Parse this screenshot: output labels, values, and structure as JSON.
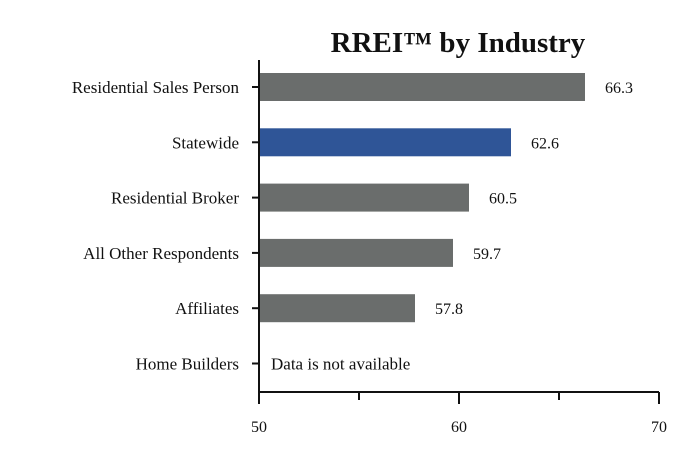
{
  "chart_data": {
    "type": "bar",
    "orientation": "horizontal",
    "title": "RREI™ by Industry",
    "categories": [
      "Residential Sales Person",
      "Statewide",
      "Residential Broker",
      "All Other Respondents",
      "Affiliates",
      "Home Builders"
    ],
    "values": [
      66.3,
      62.6,
      60.5,
      59.7,
      57.8,
      null
    ],
    "value_labels": [
      "66.3",
      "62.6",
      "60.5",
      "59.7",
      "57.8",
      ""
    ],
    "unavailable_note": "Data is not available",
    "bar_colors": [
      "#6a6d6c",
      "#2f5597",
      "#6a6d6c",
      "#6a6d6c",
      "#6a6d6c",
      "#6a6d6c"
    ],
    "xlim": [
      50,
      70
    ],
    "xticks": [
      50,
      60,
      70
    ],
    "xtick_labels": [
      "50",
      "60",
      "70"
    ],
    "xlabel": "",
    "ylabel": "",
    "grid": false,
    "legend": "none"
  }
}
